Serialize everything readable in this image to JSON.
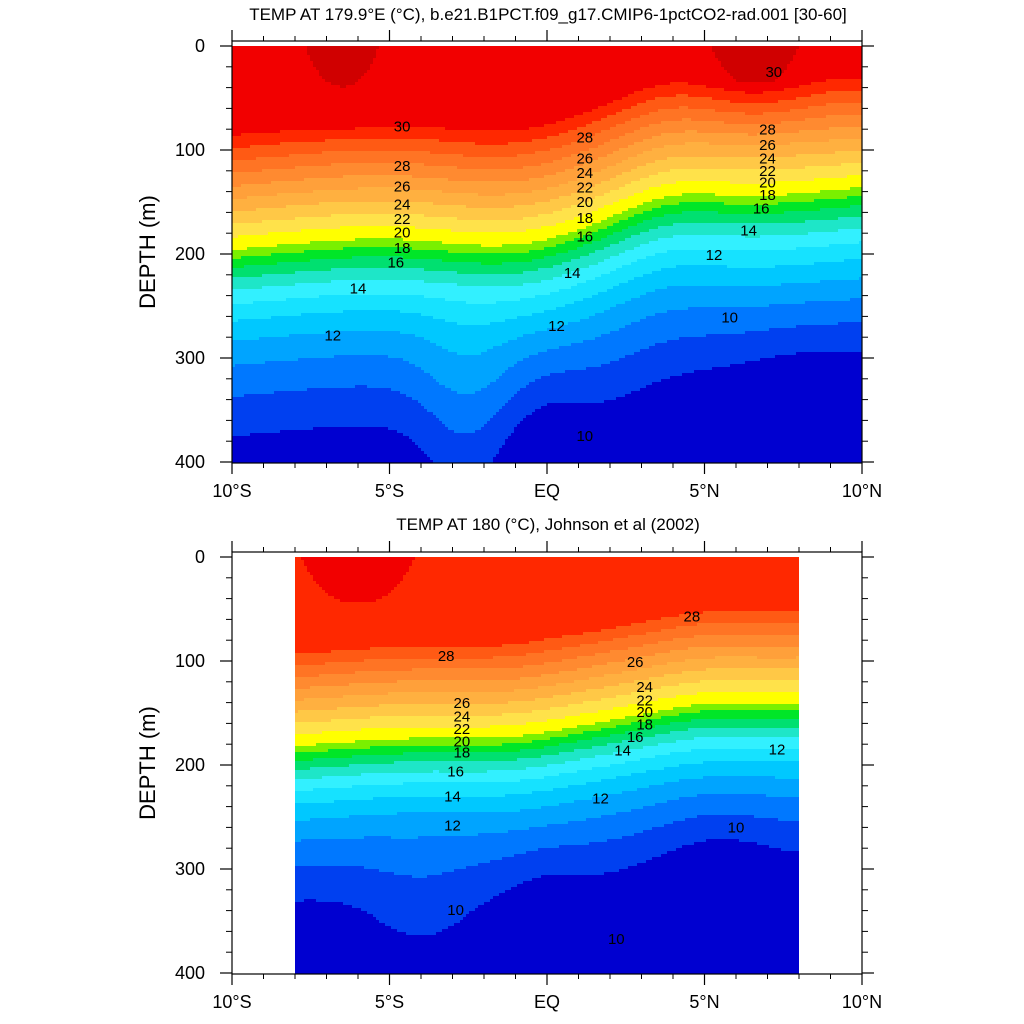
{
  "chart_data": [
    {
      "type": "contour",
      "title": "TEMP AT 179.9°E (°C), b.e21.B1PCT.f09_g17.CMIP6-1pctCO2-rad.001 [30-60]",
      "xlabel": "",
      "ylabel": "DEPTH (m)",
      "x_ticklabels": [
        "10°S",
        "5°S",
        "EQ",
        "5°N",
        "10°N"
      ],
      "x_tick_values_lat": [
        -10,
        -5,
        0,
        5,
        10
      ],
      "y_ticklabels": [
        "0",
        "100",
        "200",
        "300",
        "400"
      ],
      "y_tick_values": [
        0,
        100,
        200,
        300,
        400
      ],
      "xlim_lat": [
        -10,
        10
      ],
      "ylim_depth_m": [
        400,
        0
      ],
      "data_lat_range": [
        -10,
        10
      ],
      "contour_levels": [
        10,
        11,
        12,
        13,
        14,
        15,
        16,
        17,
        18,
        19,
        20,
        21,
        22,
        23,
        24,
        25,
        26,
        27,
        28,
        29,
        30
      ],
      "contour_labels": [
        {
          "value": 30,
          "lat": 7.2,
          "depth": 30
        },
        {
          "value": 30,
          "lat": -4.6,
          "depth": 82
        },
        {
          "value": 28,
          "lat": -4.6,
          "depth": 120
        },
        {
          "value": 28,
          "lat": 1.2,
          "depth": 93
        },
        {
          "value": 28,
          "lat": 7.0,
          "depth": 85
        },
        {
          "value": 26,
          "lat": -4.6,
          "depth": 140
        },
        {
          "value": 26,
          "lat": 1.2,
          "depth": 113
        },
        {
          "value": 26,
          "lat": 7.0,
          "depth": 100
        },
        {
          "value": 24,
          "lat": -4.6,
          "depth": 157
        },
        {
          "value": 24,
          "lat": 1.2,
          "depth": 127
        },
        {
          "value": 24,
          "lat": 7.0,
          "depth": 113
        },
        {
          "value": 22,
          "lat": -4.6,
          "depth": 171
        },
        {
          "value": 22,
          "lat": 1.2,
          "depth": 141
        },
        {
          "value": 22,
          "lat": 7.0,
          "depth": 125
        },
        {
          "value": 20,
          "lat": -4.6,
          "depth": 184
        },
        {
          "value": 20,
          "lat": 1.2,
          "depth": 155
        },
        {
          "value": 20,
          "lat": 7.0,
          "depth": 136
        },
        {
          "value": 18,
          "lat": -4.6,
          "depth": 199
        },
        {
          "value": 18,
          "lat": 1.2,
          "depth": 170
        },
        {
          "value": 18,
          "lat": 7.0,
          "depth": 148
        },
        {
          "value": 16,
          "lat": -4.8,
          "depth": 213
        },
        {
          "value": 16,
          "lat": 1.2,
          "depth": 188
        },
        {
          "value": 16,
          "lat": 6.8,
          "depth": 161
        },
        {
          "value": 14,
          "lat": -6.0,
          "depth": 238
        },
        {
          "value": 14,
          "lat": 0.8,
          "depth": 223
        },
        {
          "value": 14,
          "lat": 6.4,
          "depth": 182
        },
        {
          "value": 12,
          "lat": -6.8,
          "depth": 283
        },
        {
          "value": 12,
          "lat": 0.3,
          "depth": 274
        },
        {
          "value": 12,
          "lat": 5.3,
          "depth": 206
        },
        {
          "value": 10,
          "lat": 5.8,
          "depth": 266
        },
        {
          "value": 10,
          "lat": 1.2,
          "depth": 380
        }
      ]
    },
    {
      "type": "contour",
      "title": "TEMP AT 180 (°C), Johnson et al (2002)",
      "xlabel": "",
      "ylabel": "DEPTH (m)",
      "x_ticklabels": [
        "10°S",
        "5°S",
        "EQ",
        "5°N",
        "10°N"
      ],
      "x_tick_values_lat": [
        -10,
        -5,
        0,
        5,
        10
      ],
      "y_ticklabels": [
        "0",
        "100",
        "200",
        "300",
        "400"
      ],
      "y_tick_values": [
        0,
        100,
        200,
        300,
        400
      ],
      "xlim_lat": [
        -10,
        10
      ],
      "ylim_depth_m": [
        400,
        0
      ],
      "data_lat_range": [
        -8,
        8
      ],
      "contour_levels": [
        10,
        11,
        12,
        13,
        14,
        15,
        16,
        17,
        18,
        19,
        20,
        21,
        22,
        23,
        24,
        25,
        26,
        27,
        28,
        29
      ],
      "contour_labels": [
        {
          "value": 28,
          "lat": -3.2,
          "depth": 100
        },
        {
          "value": 28,
          "lat": 4.6,
          "depth": 62
        },
        {
          "value": 26,
          "lat": -2.7,
          "depth": 145
        },
        {
          "value": 26,
          "lat": 2.8,
          "depth": 106
        },
        {
          "value": 24,
          "lat": -2.7,
          "depth": 158
        },
        {
          "value": 24,
          "lat": 3.1,
          "depth": 130
        },
        {
          "value": 22,
          "lat": -2.7,
          "depth": 170
        },
        {
          "value": 22,
          "lat": 3.1,
          "depth": 143
        },
        {
          "value": 20,
          "lat": -2.7,
          "depth": 182
        },
        {
          "value": 20,
          "lat": 3.1,
          "depth": 154
        },
        {
          "value": 18,
          "lat": -2.7,
          "depth": 193
        },
        {
          "value": 18,
          "lat": 3.1,
          "depth": 166
        },
        {
          "value": 16,
          "lat": -2.9,
          "depth": 211
        },
        {
          "value": 16,
          "lat": 2.8,
          "depth": 178
        },
        {
          "value": 14,
          "lat": -3.0,
          "depth": 235
        },
        {
          "value": 14,
          "lat": 2.4,
          "depth": 191
        },
        {
          "value": 12,
          "lat": -3.0,
          "depth": 263
        },
        {
          "value": 12,
          "lat": 1.7,
          "depth": 237
        },
        {
          "value": 12,
          "lat": 7.3,
          "depth": 190
        },
        {
          "value": 10,
          "lat": -2.9,
          "depth": 344
        },
        {
          "value": 10,
          "lat": 2.2,
          "depth": 372
        },
        {
          "value": 10,
          "lat": 6.0,
          "depth": 265
        }
      ]
    }
  ]
}
